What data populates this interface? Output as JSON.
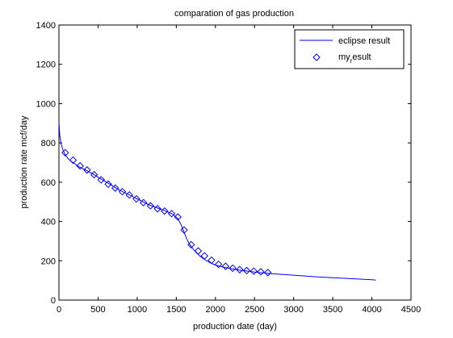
{
  "chart_data": {
    "type": "line",
    "title": "comparation of gas production",
    "xlabel": "production date (day)",
    "ylabel": "production rate mcf/day",
    "xlim": [
      0,
      4500
    ],
    "ylim": [
      0,
      1400
    ],
    "xticks": [
      0,
      500,
      1000,
      1500,
      2000,
      2500,
      3000,
      3500,
      4000,
      4500
    ],
    "yticks": [
      0,
      200,
      400,
      600,
      800,
      1000,
      1200,
      1400
    ],
    "grid": false,
    "legend_position": "top-right",
    "series": [
      {
        "name": "eclipse result",
        "style": "line",
        "color": "#0000ff",
        "x": [
          0,
          10,
          25,
          50,
          80,
          120,
          180,
          250,
          350,
          450,
          550,
          650,
          750,
          850,
          950,
          1050,
          1150,
          1250,
          1350,
          1450,
          1520,
          1560,
          1600,
          1640,
          1680,
          1720,
          1760,
          1800,
          1850,
          1900,
          1950,
          2000,
          2100,
          2200,
          2300,
          2400,
          2500,
          2700,
          3000,
          3300,
          3600,
          4000,
          4050
        ],
        "y": [
          905,
          840,
          800,
          765,
          740,
          718,
          700,
          680,
          660,
          638,
          613,
          590,
          565,
          545,
          525,
          505,
          485,
          470,
          455,
          438,
          415,
          385,
          345,
          305,
          278,
          258,
          240,
          225,
          210,
          197,
          187,
          178,
          168,
          160,
          153,
          148,
          143,
          135,
          127,
          118,
          112,
          104,
          102
        ]
      },
      {
        "name": "my_result",
        "style": "marker",
        "marker": "diamond",
        "color": "#0000ff",
        "x": [
          80,
          180,
          270,
          360,
          450,
          540,
          630,
          720,
          810,
          900,
          990,
          1080,
          1170,
          1260,
          1350,
          1440,
          1520,
          1600,
          1690,
          1780,
          1860,
          1950,
          2040,
          2130,
          2220,
          2310,
          2400,
          2490,
          2580,
          2670
        ],
        "y": [
          750,
          712,
          683,
          662,
          638,
          612,
          590,
          570,
          552,
          535,
          515,
          496,
          480,
          465,
          453,
          440,
          423,
          357,
          282,
          250,
          225,
          203,
          182,
          172,
          162,
          155,
          150,
          147,
          144,
          140
        ]
      }
    ],
    "legend": {
      "entries": [
        {
          "label": "eclipse result",
          "symbol": "line"
        },
        {
          "label_base": "my",
          "label_sub": "r",
          "label_rest": "esult",
          "symbol": "diamond"
        }
      ]
    }
  }
}
